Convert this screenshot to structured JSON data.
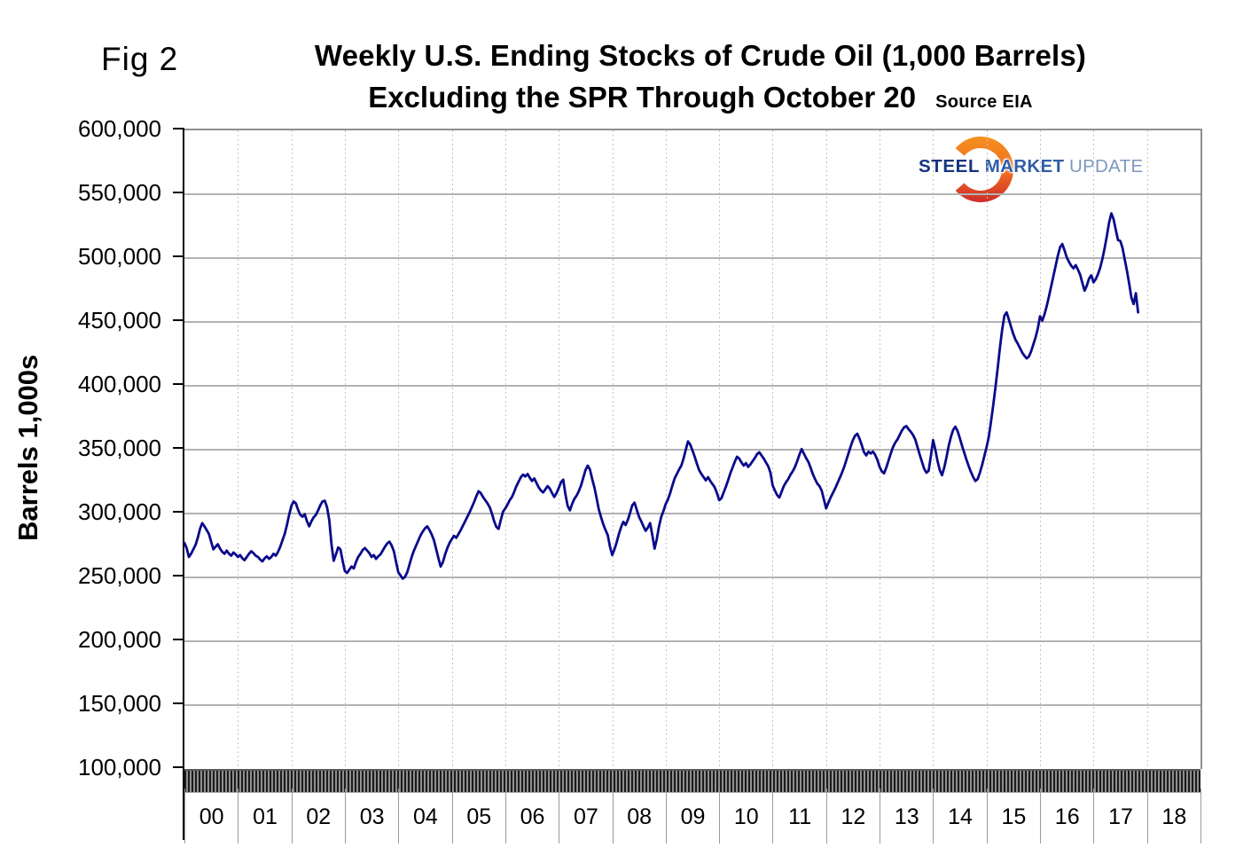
{
  "figure": {
    "fig_label": "Fig 2",
    "title_line1": "Weekly U.S. Ending Stocks of Crude Oil  (1,000 Barrels)",
    "title_line2": "Excluding the SPR Through October 20",
    "source_label": "Source EIA"
  },
  "logo": {
    "word1": "STEEL",
    "word2": "MARKET",
    "word3": "UPDATE",
    "word1_color": "#16357F",
    "word2_color": "#2F5EA8",
    "word3_color": "#7D97BE",
    "crescent_top_color": "#F7941E",
    "crescent_bottom_color": "#C9252C"
  },
  "chart_data": {
    "type": "line",
    "title": "Weekly U.S. Ending Stocks of Crude Oil (1,000 Barrels) Excluding the SPR Through October 20",
    "xlabel": "",
    "ylabel": "Barrels 1,000s",
    "y_tick_labels": [
      "600,000",
      "550,000",
      "500,000",
      "450,000",
      "400,000",
      "350,000",
      "300,000",
      "250,000",
      "200,000",
      "150,000",
      "100,000"
    ],
    "y_tick_values": [
      600000,
      550000,
      500000,
      450000,
      400000,
      350000,
      300000,
      250000,
      200000,
      150000,
      100000
    ],
    "ylim": [
      100000,
      600000
    ],
    "x_tick_labels": [
      "00",
      "01",
      "02",
      "03",
      "04",
      "05",
      "06",
      "07",
      "08",
      "09",
      "10",
      "11",
      "12",
      "13",
      "14",
      "15",
      "16",
      "17",
      "18"
    ],
    "xlim": [
      2000,
      2019
    ],
    "grid": "horizontal solid, vertical dashed per year",
    "legend": "none",
    "line_color": "#0A0A8C",
    "series": [
      {
        "name": "U.S. ending stocks of crude oil excluding SPR (1,000 barrels), weekly",
        "points_start_year": 2000,
        "points_per_year": 24,
        "values": [
          277000,
          273000,
          266000,
          268500,
          272000,
          275500,
          281000,
          288000,
          292500,
          290000,
          287000,
          284000,
          278000,
          272000,
          274000,
          276000,
          272500,
          270000,
          268500,
          271000,
          268500,
          267000,
          269500,
          268000,
          266000,
          267500,
          265000,
          263500,
          266000,
          268500,
          270500,
          269000,
          267000,
          266000,
          264000,
          262500,
          265000,
          266500,
          264500,
          266000,
          268500,
          267000,
          270000,
          274000,
          279000,
          284000,
          291000,
          299000,
          306000,
          309500,
          308000,
          303000,
          299000,
          297500,
          299500,
          294000,
          290000,
          294000,
          297000,
          299000,
          302500,
          306500,
          309500,
          310000,
          305000,
          295000,
          276000,
          263000,
          268000,
          273500,
          272000,
          263000,
          255000,
          253500,
          256000,
          258500,
          257000,
          262000,
          266000,
          268500,
          271500,
          273000,
          271000,
          269000,
          266000,
          267500,
          264500,
          266500,
          268000,
          271000,
          274000,
          276500,
          278000,
          275000,
          270500,
          262000,
          254000,
          251500,
          249000,
          250500,
          254000,
          260000,
          266000,
          271000,
          275000,
          279000,
          283000,
          286000,
          288500,
          290000,
          287000,
          283500,
          279000,
          272000,
          265000,
          258500,
          262000,
          268000,
          273000,
          277000,
          280000,
          282500,
          281000,
          284000,
          287000,
          290500,
          294000,
          297500,
          301000,
          305000,
          309000,
          313500,
          317500,
          316000,
          313000,
          310500,
          308000,
          305000,
          300000,
          294000,
          289500,
          288000,
          295000,
          301500,
          304000,
          307000,
          310500,
          313000,
          317000,
          321500,
          325000,
          328500,
          330500,
          329000,
          331000,
          328000,
          325500,
          327500,
          324000,
          320500,
          318000,
          316500,
          319000,
          321500,
          319500,
          316000,
          313000,
          316000,
          320000,
          324500,
          326500,
          315000,
          306000,
          302500,
          307500,
          311500,
          314000,
          317500,
          322000,
          328000,
          334000,
          337500,
          334500,
          327000,
          320500,
          312000,
          303000,
          297000,
          291500,
          287000,
          283000,
          274000,
          267500,
          272000,
          277500,
          284000,
          289500,
          293500,
          291000,
          295000,
          300500,
          306500,
          308500,
          303000,
          297500,
          294000,
          290000,
          286500,
          289000,
          292500,
          283000,
          272500,
          280000,
          290000,
          297500,
          302000,
          307500,
          311000,
          316000,
          322000,
          327500,
          331000,
          334500,
          337500,
          343000,
          350000,
          356500,
          354000,
          349500,
          344500,
          339000,
          334000,
          331000,
          328500,
          326000,
          328500,
          325500,
          323000,
          320500,
          316000,
          310500,
          312000,
          316500,
          321000,
          326000,
          331500,
          336000,
          340500,
          344500,
          343000,
          340000,
          337500,
          339500,
          336500,
          338500,
          341000,
          343500,
          346500,
          348000,
          345500,
          343000,
          340000,
          337000,
          332000,
          322000,
          318000,
          314500,
          312500,
          317000,
          321500,
          324500,
          327000,
          330500,
          333000,
          336500,
          341000,
          346000,
          350500,
          347000,
          343500,
          340500,
          336000,
          331000,
          327000,
          323500,
          321500,
          318000,
          311000,
          304000,
          308500,
          312500,
          316000,
          319500,
          323500,
          327500,
          331500,
          336000,
          341500,
          347000,
          352500,
          357500,
          361000,
          362500,
          358500,
          353500,
          348000,
          345500,
          348500,
          347000,
          348500,
          346000,
          342000,
          336500,
          333000,
          331500,
          336000,
          341500,
          347000,
          352000,
          355500,
          358000,
          361500,
          365000,
          367500,
          368500,
          366000,
          364000,
          361500,
          358000,
          352000,
          346000,
          340500,
          335000,
          332000,
          333500,
          345000,
          357500,
          350000,
          341000,
          334000,
          330000,
          336000,
          344000,
          353000,
          360000,
          365500,
          368000,
          364500,
          359000,
          353000,
          347500,
          342000,
          337000,
          332500,
          328500,
          325500,
          327000,
          332000,
          338000,
          345000,
          352000,
          360000,
          372000,
          385000,
          399000,
          414000,
          430000,
          444000,
          455000,
          457500,
          452000,
          446000,
          440500,
          436000,
          433000,
          429500,
          426000,
          423500,
          421500,
          423000,
          427000,
          432500,
          438000,
          445000,
          454500,
          451000,
          456000,
          462500,
          470000,
          478000,
          486000,
          494000,
          502000,
          508500,
          511000,
          506000,
          500500,
          497000,
          494000,
          492000,
          494500,
          491000,
          487000,
          480500,
          474500,
          478500,
          484000,
          486500,
          481000,
          483500,
          487500,
          492500,
          499500,
          508000,
          517500,
          528000,
          535000,
          530500,
          522000,
          514000,
          513500,
          508000,
          499000,
          490000,
          480000,
          469000,
          464000,
          472500,
          457500
        ]
      }
    ]
  }
}
